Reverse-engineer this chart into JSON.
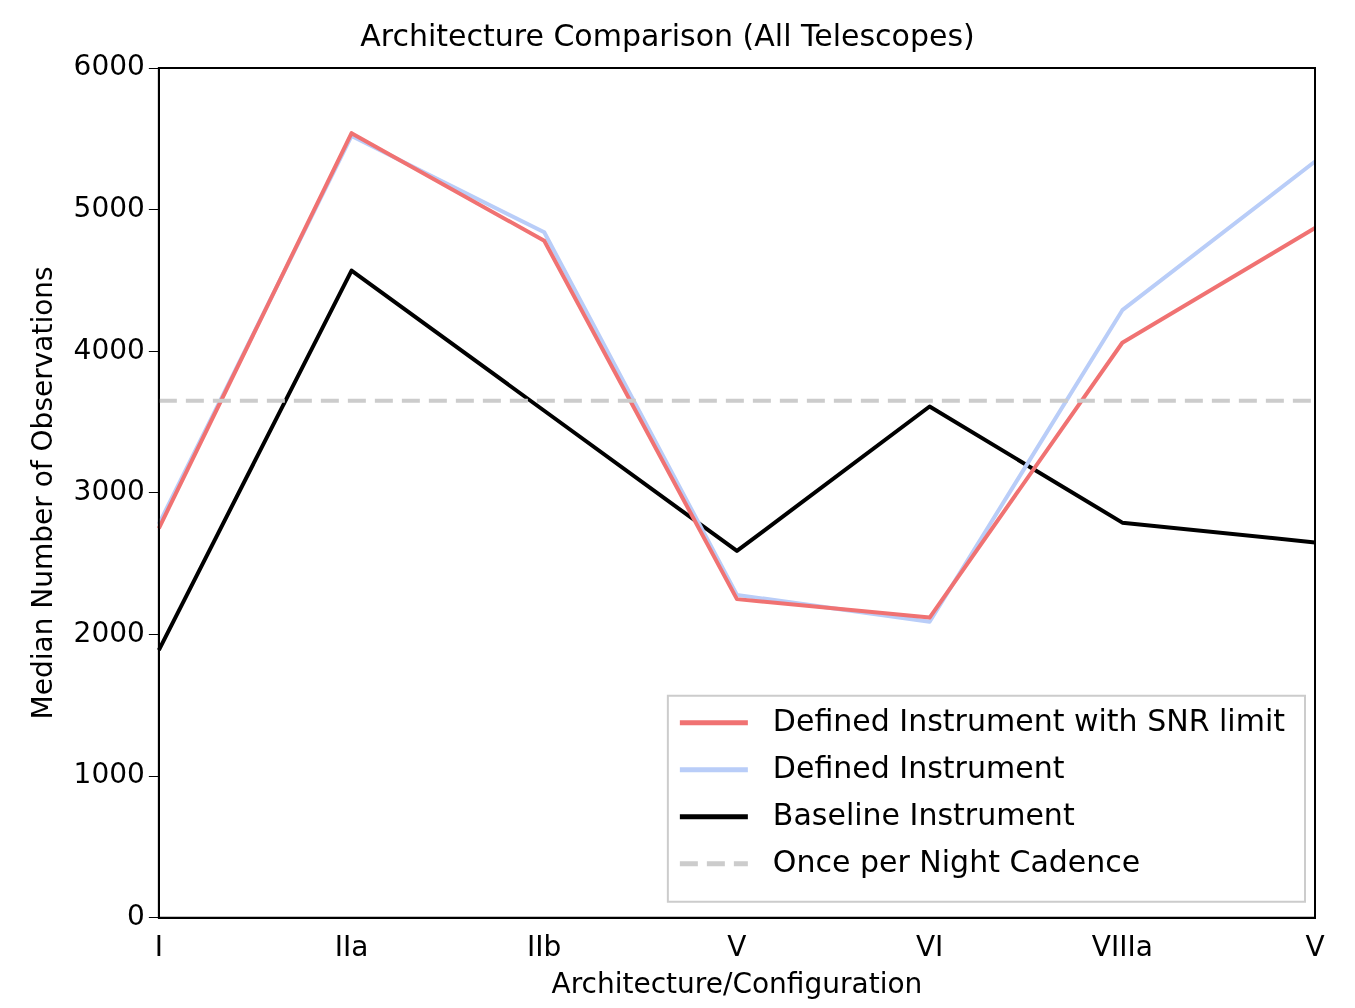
{
  "chart_data": {
    "type": "line",
    "title": "Architecture Comparison (All Telescopes)",
    "xlabel": "Architecture/Configuration",
    "ylabel": "Median Number of Observations",
    "categories": [
      "I",
      "IIa",
      "IIb",
      "V",
      "VI",
      "VIIIa",
      "V"
    ],
    "series": [
      {
        "name": "Defined Instrument with SNR limit",
        "color": "#f07272",
        "values": [
          2750,
          5540,
          4780,
          2250,
          2120,
          4060,
          4870
        ]
      },
      {
        "name": "Defined Instrument",
        "color": "#b9cdf8",
        "values": [
          2780,
          5520,
          4840,
          2280,
          2090,
          4290,
          5340
        ]
      },
      {
        "name": "Baseline Instrument",
        "color": "#000000",
        "values": [
          1890,
          4570,
          3580,
          2590,
          3610,
          2790,
          2650
        ]
      }
    ],
    "ref_lines": [
      {
        "axis": "y",
        "value": 3650,
        "label": "Once per Night Cadence",
        "color": "#cccccc",
        "line_style": "dashed"
      }
    ],
    "ylim": [
      0,
      6000
    ],
    "yticks": [
      0,
      1000,
      2000,
      3000,
      4000,
      5000,
      6000
    ],
    "grid": false,
    "legend": "lower right",
    "marker": "none",
    "line_style": "solid"
  }
}
